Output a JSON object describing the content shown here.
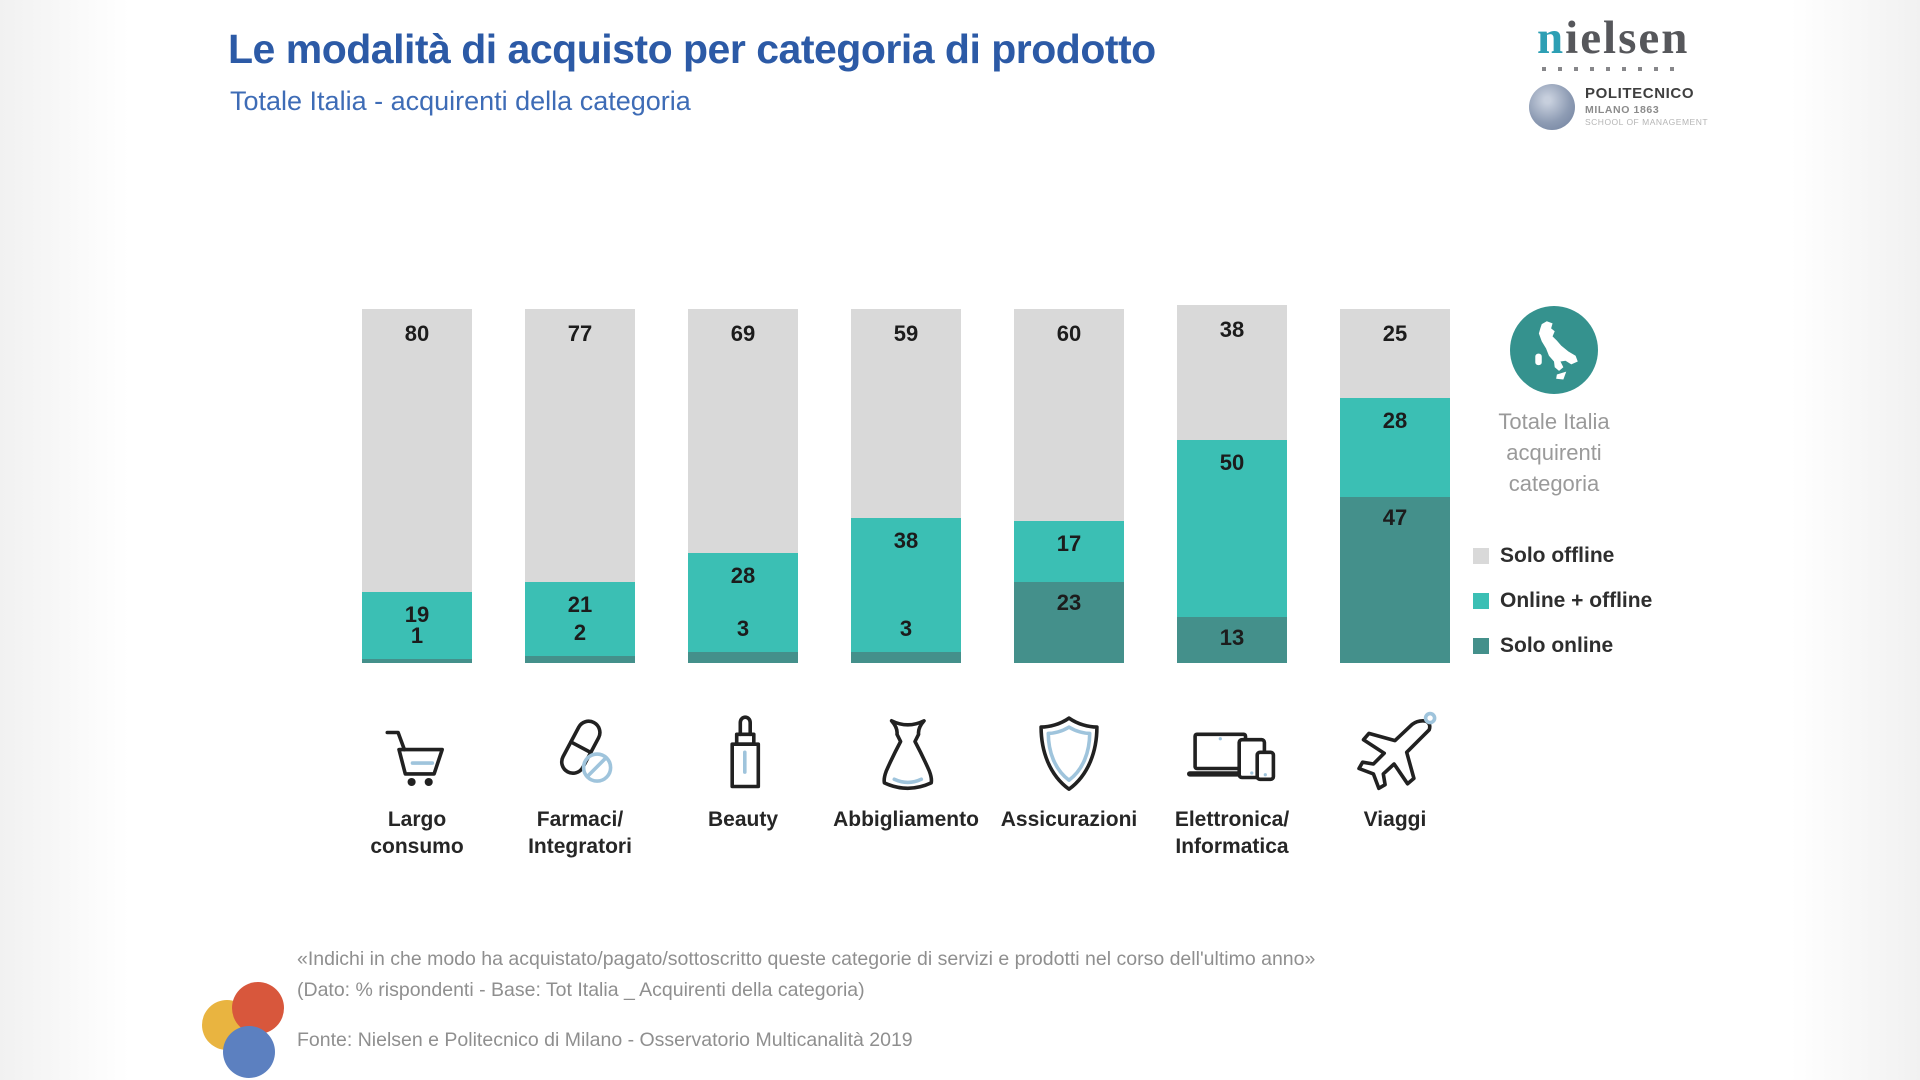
{
  "slide": {
    "title": "Le modalità di acquisto per categoria di prodotto",
    "subtitle": "Totale Italia - acquirenti della categoria"
  },
  "logos": {
    "nielsen_text": "nielsen",
    "politecnico": {
      "name": "POLITECNICO",
      "city_year": "MILANO 1863",
      "school": "SCHOOL OF MANAGEMENT"
    }
  },
  "side_panel": {
    "caption_lines": [
      "Totale Italia",
      "acquirenti",
      "categoria"
    ],
    "legend": [
      {
        "label": "Solo offline",
        "color": "#d9d9d9"
      },
      {
        "label": "Online + offline",
        "color": "#3bbfb4"
      },
      {
        "label": "Solo online",
        "color": "#44908b"
      }
    ]
  },
  "chart_data": {
    "type": "bar",
    "stacked": true,
    "value_unit": "% rispondenti",
    "ylim": [
      0,
      100
    ],
    "legend_position": "right",
    "categories": [
      "Largo consumo",
      "Farmaci/Integratori",
      "Beauty",
      "Abbigliamento",
      "Assicurazioni",
      "Elettronica/Informatica",
      "Viaggi"
    ],
    "category_display_lines": [
      [
        "Largo",
        "consumo"
      ],
      [
        "Farmaci/",
        "Integratori"
      ],
      [
        "Beauty"
      ],
      [
        "Abbigliamento"
      ],
      [
        "Assicurazioni"
      ],
      [
        "Elettronica/",
        "Informatica"
      ],
      [
        "Viaggi"
      ]
    ],
    "category_icons": [
      "cart-icon",
      "pill-icon",
      "beauty-icon",
      "dress-icon",
      "shield-icon",
      "devices-icon",
      "plane-icon"
    ],
    "series": [
      {
        "name": "Solo offline",
        "color": "#d9d9d9",
        "values": [
          80,
          77,
          69,
          59,
          60,
          38,
          25
        ]
      },
      {
        "name": "Online + offline",
        "color": "#3bbfb4",
        "values": [
          19,
          21,
          28,
          38,
          17,
          50,
          28
        ]
      },
      {
        "name": "Solo online",
        "color": "#44908b",
        "values": [
          1,
          2,
          3,
          3,
          23,
          13,
          47
        ]
      }
    ]
  },
  "footer": {
    "quote": "«Indichi in che modo ha acquistato/pagato/sottoscritto queste categorie di servizi e prodotti nel corso dell'ultimo anno»",
    "base_note": "(Dato: % rispondenti - Base: Tot Italia _ Acquirenti della categoria)",
    "source": "Fonte: Nielsen e Politecnico di Milano - Osservatorio Multicanalità 2019"
  },
  "colors": {
    "title_blue": "#2c5aa6",
    "subtitle_blue": "#3e6cb6",
    "italy_circle_teal": "#35928e",
    "value_text": "#1c1c1c",
    "muted_text": "#9a9a9a",
    "footer_text": "#8f8f8f"
  }
}
